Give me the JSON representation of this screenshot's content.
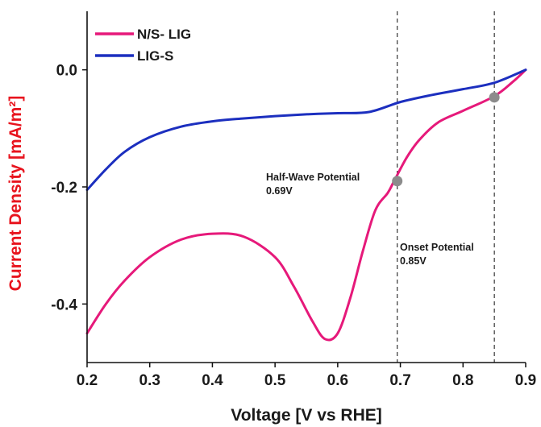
{
  "chart_data": {
    "type": "line",
    "xlabel": "Voltage [V vs RHE]",
    "ylabel": "Current Density [mA/m²]",
    "xlim": [
      0.2,
      0.9
    ],
    "ylim": [
      -0.5,
      0.1
    ],
    "x_ticks": [
      "0.2",
      "0.3",
      "0.4",
      "0.5",
      "0.6",
      "0.7",
      "0.8",
      "0.9"
    ],
    "x_tick_values": [
      0.2,
      0.3,
      0.4,
      0.5,
      0.6,
      0.7,
      0.8,
      0.9
    ],
    "y_ticks": [
      "0.0",
      "-0.2",
      "-0.4"
    ],
    "y_tick_values": [
      0.0,
      -0.2,
      -0.4
    ],
    "grid": false,
    "legend_position": "top-left",
    "series": [
      {
        "name": "N/S- LIG",
        "color": "#e6197a",
        "x": [
          0.2,
          0.23,
          0.26,
          0.3,
          0.35,
          0.4,
          0.45,
          0.5,
          0.53,
          0.56,
          0.58,
          0.6,
          0.62,
          0.64,
          0.66,
          0.68,
          0.69,
          0.71,
          0.73,
          0.76,
          0.8,
          0.85,
          0.88,
          0.9
        ],
        "y": [
          -0.45,
          -0.4,
          -0.36,
          -0.32,
          -0.29,
          -0.28,
          -0.285,
          -0.32,
          -0.37,
          -0.43,
          -0.46,
          -0.45,
          -0.39,
          -0.31,
          -0.24,
          -0.21,
          -0.19,
          -0.15,
          -0.12,
          -0.09,
          -0.07,
          -0.045,
          -0.02,
          0.0
        ]
      },
      {
        "name": "LIG-S",
        "color": "#1c2fbf",
        "x": [
          0.2,
          0.23,
          0.26,
          0.3,
          0.35,
          0.4,
          0.45,
          0.5,
          0.55,
          0.6,
          0.65,
          0.7,
          0.75,
          0.8,
          0.85,
          0.9
        ],
        "y": [
          -0.205,
          -0.17,
          -0.14,
          -0.115,
          -0.097,
          -0.088,
          -0.083,
          -0.079,
          -0.076,
          -0.074,
          -0.072,
          -0.055,
          -0.043,
          -0.033,
          -0.022,
          0.0
        ]
      }
    ],
    "vlines": [
      0.695,
      0.85
    ],
    "markers": [
      {
        "x": 0.695,
        "y": -0.19,
        "color": "#8c8c8c"
      },
      {
        "x": 0.85,
        "y": -0.047,
        "color": "#8c8c8c"
      }
    ],
    "annotations": [
      {
        "id": "half-wave",
        "lines": [
          "Half-Wave Potential",
          "0.69V"
        ],
        "x": 0.69,
        "y": -0.19
      },
      {
        "id": "onset",
        "lines": [
          "Onset Potential",
          "0.85V"
        ],
        "x": 0.85,
        "y": -0.31
      }
    ]
  }
}
